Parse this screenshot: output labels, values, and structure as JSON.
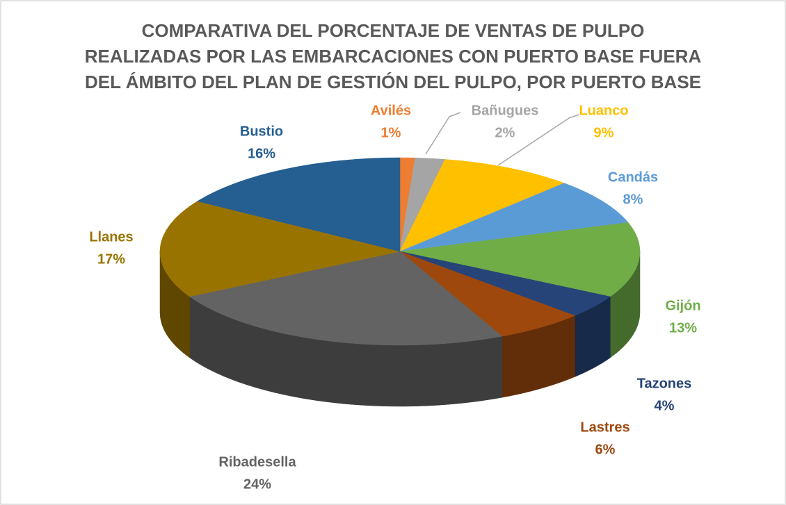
{
  "chart_data": {
    "type": "pie",
    "title": [
      "COMPARATIVA DEL PORCENTAJE DE VENTAS DE PULPO",
      "REALIZADAS POR LAS EMBARCACIONES CON PUERTO BASE FUERA",
      "DEL ÁMBITO DEL PLAN DE GESTIÓN DEL PULPO, POR PUERTO BASE"
    ],
    "categories": [
      "Avilés",
      "Bañugues",
      "Luanco",
      "Candás",
      "Gijón",
      "Tazones",
      "Lastres",
      "Ribadesella",
      "Llanes",
      "Bustio"
    ],
    "values": [
      1,
      2,
      9,
      8,
      13,
      4,
      6,
      24,
      17,
      16
    ],
    "value_labels": [
      "1%",
      "2%",
      "9%",
      "8%",
      "13%",
      "4%",
      "6%",
      "24%",
      "17%",
      "16%"
    ],
    "colors": [
      "#ed7d31",
      "#a5a5a5",
      "#ffc000",
      "#5b9bd5",
      "#70ad47",
      "#264478",
      "#9e480e",
      "#636363",
      "#997300",
      "#255e91"
    ]
  }
}
